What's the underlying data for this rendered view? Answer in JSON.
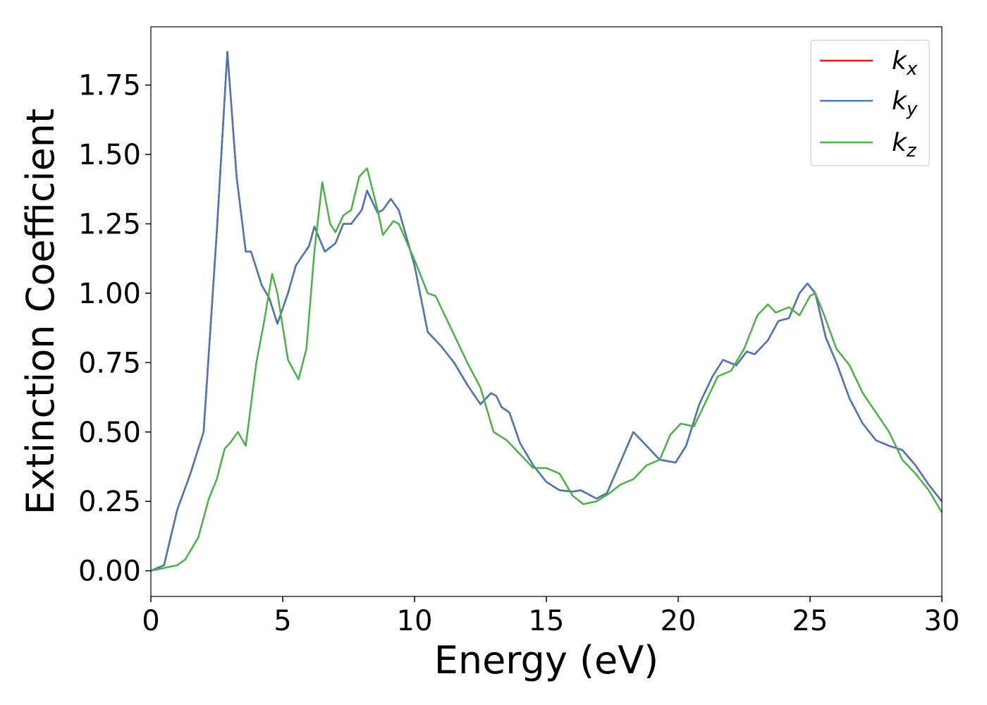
{
  "chart_data": {
    "type": "line",
    "xlabel": "Energy (eV)",
    "ylabel": "Extinction Coefficient",
    "xlim": [
      0,
      30
    ],
    "ylim": [
      -0.0925,
      1.96
    ],
    "xticks": [
      0,
      5,
      10,
      15,
      20,
      25,
      30
    ],
    "yticks": [
      {
        "value": 0,
        "label": "0.00"
      },
      0.25,
      {
        "value": 0.5,
        "label": "0.50"
      },
      0.75,
      {
        "value": 1,
        "label": "1.00"
      },
      1.25,
      {
        "value": 1.5,
        "label": "1.50"
      },
      1.75
    ],
    "legend": "upper right",
    "series": [
      {
        "name": "kx",
        "color": "#e41a1c",
        "x": [
          0,
          0.5,
          1.0,
          1.5,
          2.0,
          2.5,
          2.9,
          3.25,
          3.6,
          3.8,
          4.2,
          4.5,
          4.8,
          5.2,
          5.5,
          6.0,
          6.2,
          6.6,
          7.0,
          7.3,
          7.6,
          8.0,
          8.2,
          8.6,
          8.8,
          9.1,
          9.4,
          10.0,
          10.5,
          11.0,
          11.5,
          12.0,
          12.5,
          12.9,
          13.1,
          13.3,
          13.6,
          14.0,
          14.5,
          15.0,
          15.5,
          16.0,
          16.3,
          16.9,
          17.3,
          17.8,
          18.3,
          18.8,
          19.3,
          19.9,
          20.3,
          20.8,
          21.3,
          21.7,
          22.2,
          22.6,
          22.9,
          23.4,
          23.8,
          24.2,
          24.6,
          24.9,
          25.2,
          25.6,
          26.0,
          26.5,
          27.0,
          27.5,
          28.0,
          28.5,
          29.0,
          29.5,
          30
        ],
        "values": [
          0,
          0.02,
          0.22,
          0.35,
          0.5,
          1.22,
          1.87,
          1.42,
          1.15,
          1.15,
          1.03,
          0.98,
          0.89,
          1.0,
          1.1,
          1.17,
          1.24,
          1.15,
          1.18,
          1.25,
          1.25,
          1.3,
          1.37,
          1.29,
          1.3,
          1.34,
          1.3,
          1.1,
          0.86,
          0.81,
          0.75,
          0.67,
          0.6,
          0.64,
          0.63,
          0.59,
          0.57,
          0.46,
          0.38,
          0.32,
          0.29,
          0.285,
          0.29,
          0.26,
          0.28,
          0.39,
          0.5,
          0.45,
          0.4,
          0.39,
          0.45,
          0.6,
          0.7,
          0.76,
          0.74,
          0.79,
          0.78,
          0.83,
          0.9,
          0.91,
          1.0,
          1.035,
          1.0,
          0.84,
          0.75,
          0.62,
          0.53,
          0.47,
          0.45,
          0.435,
          0.38,
          0.31,
          0.25
        ]
      },
      {
        "name": "ky",
        "color": "#4a78b0",
        "x": [
          0,
          0.5,
          1.0,
          1.5,
          2.0,
          2.5,
          2.9,
          3.25,
          3.6,
          3.8,
          4.2,
          4.5,
          4.8,
          5.2,
          5.5,
          6.0,
          6.2,
          6.6,
          7.0,
          7.3,
          7.6,
          8.0,
          8.2,
          8.6,
          8.8,
          9.1,
          9.4,
          10.0,
          10.5,
          11.0,
          11.5,
          12.0,
          12.5,
          12.9,
          13.1,
          13.3,
          13.6,
          14.0,
          14.5,
          15.0,
          15.5,
          16.0,
          16.3,
          16.9,
          17.3,
          17.8,
          18.3,
          18.8,
          19.3,
          19.9,
          20.3,
          20.8,
          21.3,
          21.7,
          22.2,
          22.6,
          22.9,
          23.4,
          23.8,
          24.2,
          24.6,
          24.9,
          25.2,
          25.6,
          26.0,
          26.5,
          27.0,
          27.5,
          28.0,
          28.5,
          29.0,
          29.5,
          30
        ],
        "values": [
          0,
          0.02,
          0.22,
          0.35,
          0.5,
          1.22,
          1.87,
          1.42,
          1.15,
          1.15,
          1.03,
          0.98,
          0.89,
          1.0,
          1.1,
          1.17,
          1.24,
          1.15,
          1.18,
          1.25,
          1.25,
          1.3,
          1.37,
          1.29,
          1.3,
          1.34,
          1.3,
          1.1,
          0.86,
          0.81,
          0.75,
          0.67,
          0.6,
          0.64,
          0.63,
          0.59,
          0.57,
          0.46,
          0.38,
          0.32,
          0.29,
          0.285,
          0.29,
          0.26,
          0.28,
          0.39,
          0.5,
          0.45,
          0.4,
          0.39,
          0.45,
          0.6,
          0.7,
          0.76,
          0.74,
          0.79,
          0.78,
          0.83,
          0.9,
          0.91,
          1.0,
          1.035,
          1.0,
          0.84,
          0.75,
          0.62,
          0.53,
          0.47,
          0.45,
          0.435,
          0.38,
          0.31,
          0.25
        ]
      },
      {
        "name": "kz",
        "color": "#4daf4a",
        "x": [
          0,
          0.5,
          1.0,
          1.3,
          1.8,
          2.2,
          2.5,
          2.8,
          3.0,
          3.3,
          3.6,
          4.0,
          4.3,
          4.6,
          4.8,
          5.2,
          5.6,
          5.9,
          6.2,
          6.5,
          6.8,
          7.0,
          7.3,
          7.6,
          7.9,
          8.2,
          8.6,
          8.8,
          9.2,
          9.4,
          10.0,
          10.5,
          10.8,
          11.5,
          12.0,
          12.5,
          13.0,
          13.5,
          14.0,
          14.5,
          15.0,
          15.5,
          16.0,
          16.4,
          16.9,
          17.4,
          17.8,
          18.3,
          18.8,
          19.3,
          19.7,
          20.1,
          20.6,
          21.0,
          21.5,
          22.0,
          22.5,
          23.0,
          23.4,
          23.7,
          24.2,
          24.6,
          25.0,
          25.2,
          25.5,
          26.0,
          26.5,
          27.0,
          27.5,
          28.0,
          28.5,
          29.0,
          29.5,
          30
        ],
        "values": [
          0,
          0.01,
          0.02,
          0.04,
          0.12,
          0.26,
          0.33,
          0.44,
          0.46,
          0.5,
          0.45,
          0.75,
          0.9,
          1.07,
          1.0,
          0.76,
          0.69,
          0.8,
          1.15,
          1.4,
          1.25,
          1.22,
          1.28,
          1.3,
          1.42,
          1.45,
          1.3,
          1.21,
          1.26,
          1.25,
          1.12,
          1.0,
          0.99,
          0.85,
          0.75,
          0.66,
          0.5,
          0.47,
          0.42,
          0.37,
          0.37,
          0.35,
          0.27,
          0.24,
          0.25,
          0.28,
          0.31,
          0.33,
          0.38,
          0.4,
          0.49,
          0.53,
          0.52,
          0.6,
          0.7,
          0.72,
          0.8,
          0.92,
          0.96,
          0.93,
          0.95,
          0.92,
          0.99,
          1.0,
          0.93,
          0.8,
          0.74,
          0.64,
          0.57,
          0.5,
          0.4,
          0.35,
          0.29,
          0.21
        ]
      }
    ]
  }
}
